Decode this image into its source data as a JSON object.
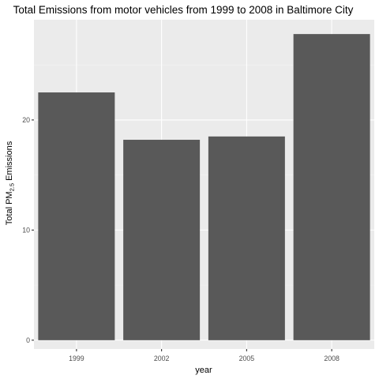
{
  "chart_data": {
    "type": "bar",
    "title": "Total Emissions from motor vehicles from 1999 to 2008 in Baltimore City",
    "xlabel": "year",
    "ylabel": {
      "prefix": "Total PM",
      "subscript": "2.5",
      "suffix": " Emissions"
    },
    "categories": [
      "1999",
      "2002",
      "2005",
      "2008"
    ],
    "values": [
      22.5,
      18.2,
      18.5,
      27.8
    ],
    "ylim": [
      -0.8,
      29.1
    ],
    "yticks": [
      0,
      10,
      20
    ],
    "ytick_labels": [
      "0",
      "10",
      "20"
    ],
    "grid": true,
    "legend": "none",
    "colors": {
      "panel_background": "#EBEBEB",
      "grid_major": "#FFFFFF",
      "grid_minor": "#F4F4F4",
      "bar_fill": "#595959",
      "tick_color": "#333333",
      "tick_label_color": "#4D4D4D"
    }
  }
}
